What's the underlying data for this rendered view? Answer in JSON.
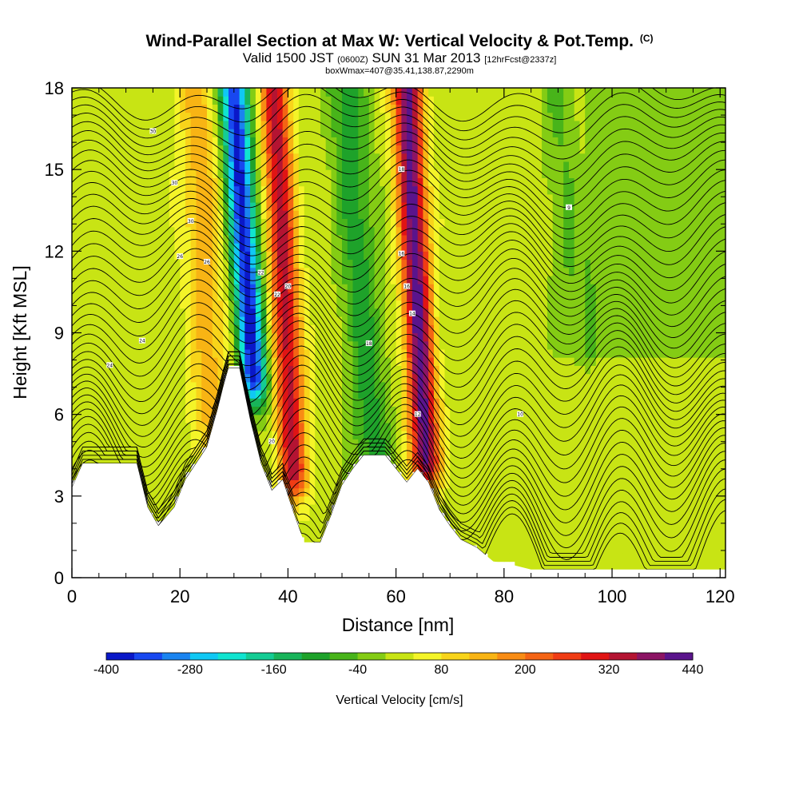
{
  "title": {
    "main": "Wind-Parallel Section at Max W: Vertical Velocity & Pot.Temp.",
    "copyright": "(C)",
    "valid_prefix": "Valid 1500 JST",
    "valid_utc": "(0600Z)",
    "valid_date": "SUN 31 Mar 2013",
    "forecast": "[12hrFcst@2337z]",
    "box_info": "boxWmax=407@35.41,138.87,2290m"
  },
  "chart_data": {
    "type": "heatmap",
    "xlabel": "Distance [nm]",
    "ylabel": "Height [Kft MSL]",
    "xlim": [
      0,
      121
    ],
    "ylim": [
      0,
      18
    ],
    "x_ticks": [
      "0",
      "20",
      "40",
      "60",
      "80",
      "100",
      "120"
    ],
    "x_tick_values": [
      0,
      20,
      40,
      60,
      80,
      100,
      120
    ],
    "y_ticks": [
      "0",
      "3",
      "6",
      "9",
      "12",
      "15",
      "18"
    ],
    "y_tick_values": [
      0,
      3,
      6,
      9,
      12,
      15,
      18
    ],
    "colorbar": {
      "title": "Vertical Velocity [cm/s]",
      "range": [
        -400,
        440
      ],
      "step": 40,
      "tick_labels": [
        "-400",
        "-280",
        "-160",
        "-40",
        "80",
        "200",
        "320",
        "440"
      ],
      "tick_values": [
        -400,
        -280,
        -160,
        -40,
        80,
        200,
        320,
        440
      ],
      "colors": [
        "#0a18c8",
        "#1848f0",
        "#1a84f0",
        "#10c8f4",
        "#10e4d0",
        "#14cc94",
        "#18b45a",
        "#1ea22a",
        "#48b41a",
        "#84cc14",
        "#c8e414",
        "#f4f428",
        "#f8d41a",
        "#f8b414",
        "#f88c14",
        "#f46414",
        "#f03c14",
        "#e01414",
        "#b41432",
        "#8c1464",
        "#5a148c"
      ]
    },
    "vertical_velocity_features": [
      {
        "kind": "updraft",
        "x_center": 24.5,
        "y_range": [
          5,
          18
        ],
        "peak": 120
      },
      {
        "kind": "downdraft",
        "x_center": 32,
        "y_range": [
          7.5,
          18
        ],
        "peak": -400
      },
      {
        "kind": "updraft",
        "x_center": 39,
        "y_range": [
          4,
          18
        ],
        "peak": 320
      },
      {
        "kind": "downdraft",
        "x_center": 53,
        "y_range": [
          4.5,
          18
        ],
        "peak": -120
      },
      {
        "kind": "updraft",
        "x_center": 63.5,
        "y_range": [
          4.5,
          18
        ],
        "peak": 407
      },
      {
        "kind": "downdraft",
        "x_center": 92,
        "y_range": [
          9,
          18
        ],
        "peak": -60
      }
    ],
    "terrain_outline": [
      [
        0,
        3.3
      ],
      [
        2,
        4.2
      ],
      [
        9,
        4.2
      ],
      [
        12,
        4.2
      ],
      [
        14,
        2.6
      ],
      [
        16,
        1.9
      ],
      [
        19,
        2.6
      ],
      [
        21,
        3.6
      ],
      [
        23,
        4.2
      ],
      [
        25,
        4.8
      ],
      [
        27,
        6.2
      ],
      [
        28,
        7.0
      ],
      [
        29,
        7.7
      ],
      [
        31,
        7.7
      ],
      [
        33,
        5.8
      ],
      [
        35,
        4.2
      ],
      [
        37,
        3.2
      ],
      [
        39,
        3.6
      ],
      [
        41,
        2.4
      ],
      [
        43,
        1.3
      ],
      [
        46,
        1.3
      ],
      [
        48,
        2.3
      ],
      [
        50,
        3.4
      ],
      [
        52,
        4.0
      ],
      [
        54,
        4.5
      ],
      [
        58,
        4.5
      ],
      [
        60,
        4.0
      ],
      [
        62,
        3.5
      ],
      [
        64,
        4.0
      ],
      [
        66,
        3.5
      ],
      [
        68,
        2.5
      ],
      [
        70,
        1.9
      ],
      [
        72,
        1.4
      ],
      [
        75,
        1.1
      ],
      [
        78,
        0.6
      ],
      [
        81,
        0.5
      ],
      [
        85,
        0.3
      ],
      [
        121,
        0.3
      ]
    ],
    "contour_labels": [
      "30",
      "30",
      "30",
      "26",
      "26",
      "24",
      "24",
      "22",
      "22",
      "20",
      "20",
      "18",
      "18",
      "16",
      "16",
      "14",
      "12",
      "10",
      "9"
    ]
  }
}
